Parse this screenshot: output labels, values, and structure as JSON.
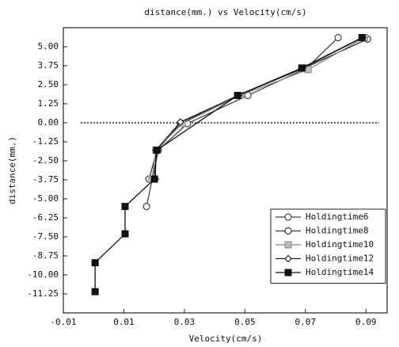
{
  "chart_data": {
    "type": "line",
    "title": "distance(mm.) vs Velocity(cm/s)",
    "x_label": "Velocity(cm/s)",
    "y_label": "distance(mm.)",
    "xlim": [
      -0.01,
      0.097
    ],
    "ylim": [
      -12.5,
      6.25
    ],
    "xticks": [
      -0.01,
      0.01,
      0.03,
      0.05,
      0.07,
      0.09
    ],
    "yticks": [
      {
        "value": 5,
        "label": "5.00"
      },
      {
        "value": 3.75,
        "label": "3.75"
      },
      {
        "value": 2.5,
        "label": "2.50"
      },
      {
        "value": 1.25,
        "label": "1.25"
      },
      {
        "value": 0,
        "label": "0.00"
      },
      {
        "value": -1.25,
        "label": "-1.25"
      },
      {
        "value": -2.5,
        "label": "-2.50"
      },
      {
        "value": -3.75,
        "label": "-3.75"
      },
      {
        "value": -5,
        "label": "-5.00"
      },
      {
        "value": -6.25,
        "label": "-6.25"
      },
      {
        "value": -7.5,
        "label": "-7.50"
      },
      {
        "value": -8.75,
        "label": "-8.75"
      },
      {
        "value": -10,
        "label": "-10.00"
      },
      {
        "value": -11.25,
        "label": "-11.25"
      }
    ],
    "reference_line_y": 0,
    "legend": "lower right",
    "series": [
      {
        "name": "Holdingtime6",
        "color": "#444444",
        "marker": "circle",
        "x": [
          0.0175,
          0.0214,
          0.031,
          0.051,
          0.0704,
          0.0808
        ],
        "values": [
          -5.5,
          -1.8,
          -0.05,
          1.8,
          3.6,
          5.6
        ]
      },
      {
        "name": "Holdingtime8",
        "color": "#333333",
        "marker": "circle",
        "x": [
          0.0183,
          0.021,
          0.0287,
          0.0476,
          0.0696,
          0.0905
        ],
        "values": [
          -3.7,
          -1.8,
          -0.05,
          1.8,
          3.6,
          5.5
        ]
      },
      {
        "name": "Holdingtime10",
        "color": "#888888",
        "marker": "square-gray",
        "x": [
          0.0193,
          0.0206,
          0.0293,
          0.0484,
          0.0709,
          0.0895
        ],
        "values": [
          -3.7,
          -1.8,
          -0.05,
          1.8,
          3.5,
          5.6
        ]
      },
      {
        "name": "Holdingtime12",
        "color": "#222222",
        "marker": "diamond",
        "x": [
          0.0204,
          0.0206,
          0.0287,
          0.0479,
          0.0691,
          0.0889
        ],
        "values": [
          -3.7,
          -1.8,
          0.05,
          1.8,
          3.6,
          5.6
        ]
      },
      {
        "name": "Holdingtime14",
        "color": "#111111",
        "marker": "square",
        "x": [
          0.0005,
          0.0005,
          0.0104,
          0.0104,
          0.0201,
          0.0209,
          0.0476,
          0.0688,
          0.0887
        ],
        "values": [
          -11.1,
          -9.2,
          -7.3,
          -5.5,
          -3.7,
          -1.8,
          1.8,
          3.6,
          5.6
        ]
      }
    ]
  }
}
